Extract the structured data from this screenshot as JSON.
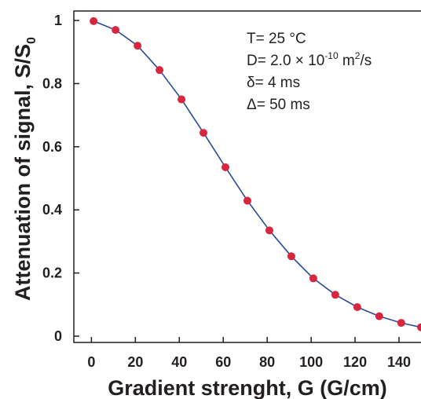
{
  "chart_data": {
    "type": "scatter",
    "xlabel": "Gradient strenght, G (G/cm)",
    "ylabel_main": "Attenuation of signal, S/S",
    "ylabel_subscript": "0",
    "xlim": [
      -8,
      150
    ],
    "ylim": [
      -0.02,
      1.03
    ],
    "xticks": [
      0,
      20,
      40,
      60,
      80,
      100,
      120,
      140
    ],
    "yticks": [
      0,
      0.2,
      0.4,
      0.6,
      0.8,
      1
    ],
    "ytick_labels": [
      "0",
      "0.2",
      "0.4",
      "0.6",
      "0.8",
      "1"
    ],
    "grid": false,
    "series": [
      {
        "x": [
          1,
          11,
          21,
          31,
          41,
          51,
          61,
          71,
          81,
          91,
          101,
          111,
          121,
          131,
          141,
          150
        ],
        "y": [
          0.998,
          0.97,
          0.92,
          0.843,
          0.75,
          0.644,
          0.535,
          0.429,
          0.335,
          0.253,
          0.183,
          0.131,
          0.092,
          0.063,
          0.042,
          0.028
        ],
        "marker_color": "#d7263d",
        "fit_line_color": "#2c4a9a"
      }
    ],
    "annotations": {
      "temperature": "T= 25 °C",
      "diffusion_prefix": "D= 2.0 × 10",
      "diffusion_exponent": "-10",
      "diffusion_unit": " m",
      "diffusion_unit_sup": "2",
      "diffusion_suffix": "/s",
      "delta_small": "δ= 4 ms",
      "delta_big": "Δ= 50 ms"
    }
  }
}
